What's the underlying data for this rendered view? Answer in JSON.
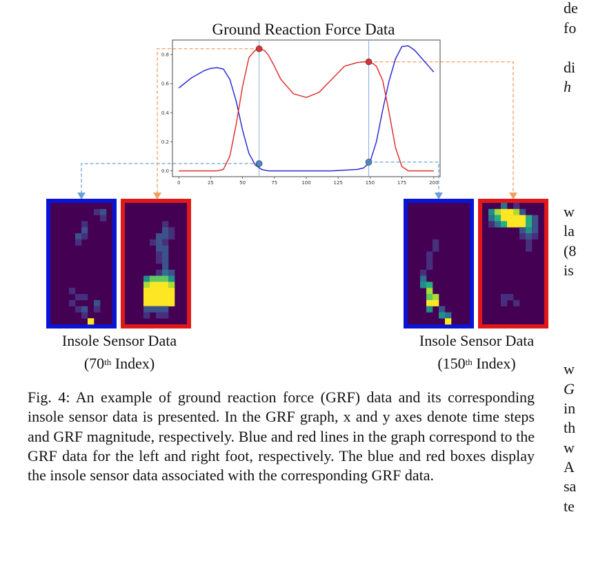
{
  "chart_data": {
    "type": "line",
    "title": "Ground Reaction Force Data",
    "xlim": [
      -5,
      205
    ],
    "ylim": [
      -0.04,
      0.9
    ],
    "x_ticks": [
      "0",
      "25",
      "50",
      "75",
      "100",
      "125",
      "150",
      "175",
      "200"
    ],
    "y_ticks": [
      "0.0",
      "0.2",
      "0.4",
      "0.6",
      "0.8"
    ],
    "series": [
      {
        "color": "#2b2bd6",
        "x": [
          0,
          10,
          20,
          25,
          30,
          35,
          40,
          45,
          50,
          55,
          60,
          65,
          70,
          80,
          100,
          120,
          140,
          145,
          150,
          155,
          160,
          165,
          170,
          175,
          180,
          185,
          190,
          195,
          200
        ],
        "y": [
          0.57,
          0.64,
          0.69,
          0.705,
          0.71,
          0.7,
          0.63,
          0.48,
          0.28,
          0.12,
          0.04,
          0.01,
          0.0,
          0.0,
          0.0,
          0.0,
          0.01,
          0.02,
          0.06,
          0.2,
          0.42,
          0.62,
          0.77,
          0.855,
          0.86,
          0.83,
          0.78,
          0.73,
          0.68
        ]
      },
      {
        "color": "#e03030",
        "x": [
          0,
          10,
          20,
          30,
          35,
          40,
          45,
          50,
          55,
          60,
          63,
          67,
          70,
          75,
          80,
          90,
          100,
          110,
          120,
          130,
          140,
          145,
          148,
          152,
          155,
          160,
          165,
          170,
          175,
          180,
          190,
          200
        ],
        "y": [
          0.0,
          0.0,
          0.0,
          0.0,
          0.01,
          0.1,
          0.32,
          0.58,
          0.78,
          0.83,
          0.84,
          0.83,
          0.8,
          0.72,
          0.63,
          0.53,
          0.505,
          0.54,
          0.63,
          0.72,
          0.745,
          0.75,
          0.75,
          0.74,
          0.72,
          0.62,
          0.4,
          0.16,
          0.03,
          0.0,
          0.0,
          0.0
        ]
      }
    ],
    "markers": [
      {
        "x": 63,
        "y": 0.84,
        "color": "#e03030"
      },
      {
        "x": 63,
        "y": 0.05,
        "color": "#4a88c8"
      },
      {
        "x": 149,
        "y": 0.75,
        "color": "#e03030"
      },
      {
        "x": 149,
        "y": 0.06,
        "color": "#4a88c8"
      }
    ],
    "vlines": [
      63,
      149
    ]
  },
  "heatmaps": {
    "cols": 10,
    "rows": 20,
    "palette": [
      "#440154",
      "#472f7d",
      "#3b528b",
      "#2c728e",
      "#21908c",
      "#27ad81",
      "#5ec962",
      "#aadc32",
      "#fde725"
    ],
    "left_70": {
      "border": "#0a14d6",
      "cells": [
        [
          7,
          1,
          1
        ],
        [
          8,
          1,
          2
        ],
        [
          8,
          2,
          1
        ],
        [
          5,
          3,
          1
        ],
        [
          5,
          4,
          2
        ],
        [
          4,
          5,
          2
        ],
        [
          5,
          5,
          1
        ],
        [
          4,
          6,
          1
        ],
        [
          3,
          14,
          1
        ],
        [
          4,
          15,
          1
        ],
        [
          5,
          15,
          1
        ],
        [
          3,
          16,
          1
        ],
        [
          7,
          16,
          2
        ],
        [
          4,
          17,
          1
        ],
        [
          5,
          17,
          2
        ],
        [
          7,
          17,
          1
        ],
        [
          5,
          18,
          1
        ],
        [
          6,
          19,
          8
        ]
      ]
    },
    "right_70": {
      "border": "#e01818",
      "cells": [
        [
          6,
          3,
          1
        ],
        [
          6,
          4,
          2
        ],
        [
          7,
          4,
          1
        ],
        [
          5,
          5,
          2
        ],
        [
          6,
          5,
          2
        ],
        [
          7,
          5,
          1
        ],
        [
          4,
          6,
          1
        ],
        [
          5,
          6,
          2
        ],
        [
          6,
          6,
          1
        ],
        [
          5,
          7,
          2
        ],
        [
          6,
          7,
          2
        ],
        [
          5,
          8,
          1
        ],
        [
          6,
          8,
          2
        ],
        [
          5,
          9,
          1
        ],
        [
          6,
          9,
          2
        ],
        [
          6,
          10,
          2
        ],
        [
          5,
          11,
          1
        ],
        [
          6,
          11,
          3
        ],
        [
          7,
          11,
          2
        ],
        [
          3,
          12,
          4
        ],
        [
          4,
          12,
          6
        ],
        [
          5,
          12,
          6
        ],
        [
          6,
          12,
          6
        ],
        [
          7,
          12,
          4
        ],
        [
          3,
          13,
          7
        ],
        [
          4,
          13,
          8
        ],
        [
          5,
          13,
          8
        ],
        [
          6,
          13,
          8
        ],
        [
          7,
          13,
          7
        ],
        [
          3,
          14,
          8
        ],
        [
          4,
          14,
          8
        ],
        [
          5,
          14,
          8
        ],
        [
          6,
          14,
          8
        ],
        [
          7,
          14,
          8
        ],
        [
          3,
          15,
          8
        ],
        [
          4,
          15,
          8
        ],
        [
          5,
          15,
          8
        ],
        [
          6,
          15,
          8
        ],
        [
          7,
          15,
          8
        ],
        [
          3,
          16,
          8
        ],
        [
          4,
          16,
          8
        ],
        [
          5,
          16,
          8
        ],
        [
          6,
          16,
          8
        ],
        [
          7,
          16,
          8
        ],
        [
          3,
          17,
          2
        ],
        [
          4,
          17,
          2
        ],
        [
          5,
          17,
          2
        ],
        [
          6,
          17,
          2
        ],
        [
          3,
          18,
          1
        ],
        [
          5,
          18,
          1
        ],
        [
          6,
          18,
          1
        ]
      ]
    },
    "left_150": {
      "border": "#0a14d6",
      "cells": [
        [
          4,
          6,
          1
        ],
        [
          4,
          7,
          1
        ],
        [
          3,
          8,
          1
        ],
        [
          3,
          9,
          1
        ],
        [
          3,
          10,
          1
        ],
        [
          2,
          11,
          1
        ],
        [
          2,
          12,
          3
        ],
        [
          2,
          13,
          4
        ],
        [
          3,
          13,
          5
        ],
        [
          3,
          14,
          7
        ],
        [
          3,
          15,
          6
        ],
        [
          4,
          15,
          7
        ],
        [
          3,
          16,
          8
        ],
        [
          4,
          16,
          8
        ],
        [
          3,
          17,
          4
        ],
        [
          5,
          17,
          2
        ],
        [
          5,
          18,
          4
        ],
        [
          6,
          18,
          3
        ],
        [
          6,
          19,
          8
        ]
      ]
    },
    "right_150": {
      "border": "#e01818",
      "cells": [
        [
          3,
          0,
          3
        ],
        [
          5,
          0,
          1
        ],
        [
          1,
          1,
          4
        ],
        [
          2,
          1,
          7
        ],
        [
          3,
          1,
          8
        ],
        [
          4,
          1,
          8
        ],
        [
          5,
          1,
          7
        ],
        [
          6,
          1,
          2
        ],
        [
          1,
          2,
          3
        ],
        [
          2,
          2,
          5
        ],
        [
          3,
          2,
          8
        ],
        [
          4,
          2,
          8
        ],
        [
          5,
          2,
          8
        ],
        [
          6,
          2,
          8
        ],
        [
          7,
          2,
          5
        ],
        [
          8,
          2,
          2
        ],
        [
          1,
          3,
          1
        ],
        [
          2,
          3,
          3
        ],
        [
          3,
          3,
          5
        ],
        [
          4,
          3,
          8
        ],
        [
          5,
          3,
          8
        ],
        [
          6,
          3,
          8
        ],
        [
          7,
          3,
          5
        ],
        [
          8,
          3,
          2
        ],
        [
          6,
          4,
          2
        ],
        [
          7,
          4,
          4
        ],
        [
          8,
          4,
          2
        ],
        [
          6,
          5,
          1
        ],
        [
          7,
          5,
          2
        ],
        [
          8,
          5,
          1
        ],
        [
          7,
          6,
          1
        ],
        [
          7,
          7,
          1
        ],
        [
          3,
          15,
          1
        ],
        [
          4,
          15,
          1
        ],
        [
          3,
          16,
          1
        ],
        [
          5,
          16,
          1
        ]
      ]
    }
  },
  "labels": {
    "left_title": "Insole Sensor Data",
    "left_index_pre": "(70",
    "left_index_sup": "th",
    "left_index_post": " Index)",
    "right_title": "Insole Sensor Data",
    "right_index_pre": "(150",
    "right_index_sup": "th",
    "right_index_post": " Index)"
  },
  "caption": "Fig. 4: An example of ground reaction force (GRF) data and its corresponding insole sensor data is presented. In the GRF graph, x and y axes denote time steps and GRF magnitude, respectively. Blue and red lines in the graph correspond to the GRF data for the left and right foot, respectively. The blue and red boxes display the insole sensor data associated with the corresponding GRF data.",
  "right_column": {
    "l1": "de",
    "l2": "fo",
    "l3": "di",
    "l4": "h",
    "l5": "w",
    "l6": "la",
    "l7": "(8",
    "l8": "is",
    "l9": "w",
    "l10": "G",
    "l11": "in",
    "l12": "th",
    "l13": "w",
    "l14": "A",
    "l15": "sa",
    "l16": "te"
  }
}
